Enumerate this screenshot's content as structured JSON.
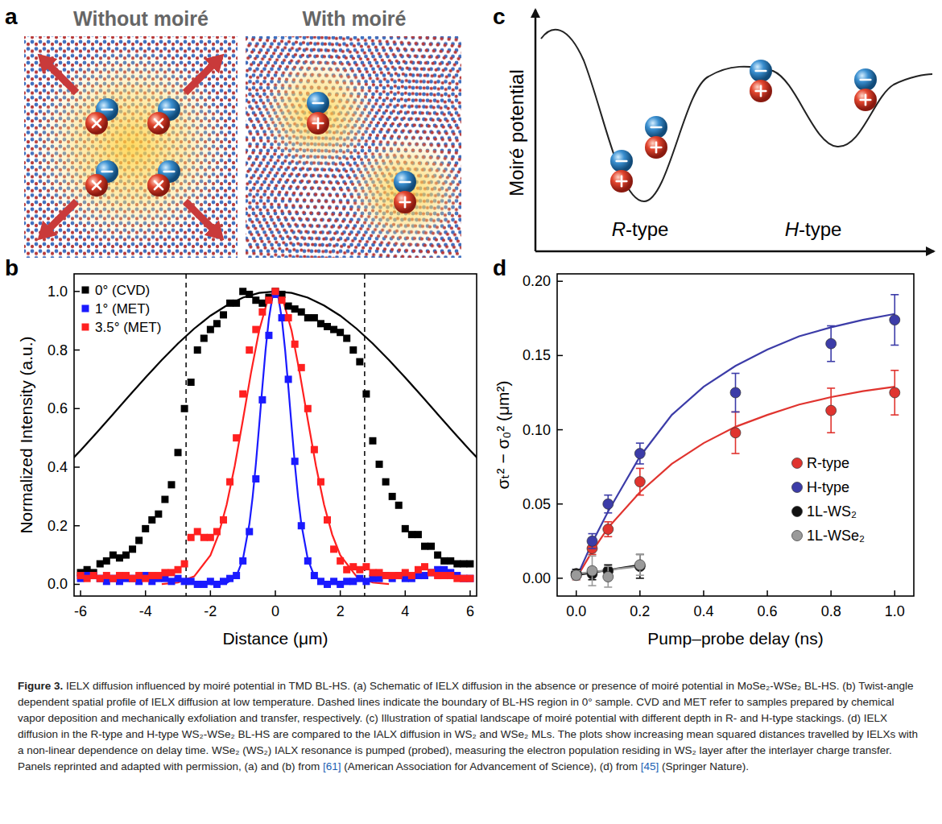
{
  "panels": {
    "a": {
      "letter": "a",
      "titles": [
        "Without moiré",
        "With moiré"
      ]
    },
    "c": {
      "letter": "c",
      "y_label": "Moiré potential",
      "labels": [
        "R-type",
        "H-type"
      ]
    }
  },
  "chart_data": [
    {
      "type": "scatter",
      "panel_label": "b",
      "x_label": "Distance (μm)",
      "y_label": "Normalized Intensity (a.u.)",
      "xlim": [
        -6.2,
        6.2
      ],
      "ylim": [
        -0.04,
        1.06
      ],
      "xticks": [
        -6,
        -4,
        -2,
        0,
        2,
        4,
        6
      ],
      "yticks": [
        {
          "value": 0,
          "label": "0.0"
        },
        0.2,
        0.4,
        0.6,
        0.8,
        {
          "value": 1,
          "label": "1.0"
        }
      ],
      "legend": "upper left",
      "vlines": [
        -2.75,
        2.75
      ],
      "series": [
        {
          "type": "line",
          "color": "#000000",
          "x": [
            -6.5,
            -6,
            -5.5,
            -5,
            -4.5,
            -4,
            -3.5,
            -3,
            -2.5,
            -2,
            -1.5,
            -1,
            -0.5,
            0,
            0.5,
            1,
            1.5,
            2,
            2.5,
            3,
            3.5,
            4,
            4.5,
            5,
            5.5,
            6,
            6.5
          ],
          "values": [
            0.399,
            0.457,
            0.518,
            0.581,
            0.644,
            0.706,
            0.766,
            0.822,
            0.873,
            0.917,
            0.952,
            0.979,
            0.995,
            1,
            0.995,
            0.979,
            0.952,
            0.917,
            0.873,
            0.822,
            0.766,
            0.706,
            0.644,
            0.581,
            0.518,
            0.457,
            0.399
          ]
        },
        {
          "type": "line",
          "color": "#ff2020",
          "x": [
            -3.5,
            -3,
            -2.5,
            -2,
            -1.75,
            -1.5,
            -1.25,
            -1,
            -0.75,
            -0.5,
            -0.25,
            0,
            0.25,
            0.5,
            0.75,
            1,
            1.25,
            1.5,
            1.75,
            2,
            2.5,
            3,
            3.5
          ],
          "values": [
            0.001,
            0.006,
            0.027,
            0.099,
            0.17,
            0.272,
            0.405,
            0.561,
            0.722,
            0.866,
            0.965,
            1,
            0.965,
            0.866,
            0.722,
            0.561,
            0.405,
            0.272,
            0.17,
            0.099,
            0.027,
            0.006,
            0.001
          ]
        },
        {
          "type": "line",
          "color": "#1a1aff",
          "x": [
            -2,
            -1.5,
            -1.2,
            -1,
            -0.8,
            -0.7,
            -0.6,
            -0.5,
            -0.4,
            -0.3,
            -0.2,
            -0.1,
            0,
            0.1,
            0.2,
            0.3,
            0.4,
            0.5,
            0.6,
            0.7,
            0.8,
            1,
            1.2,
            1.5,
            2
          ],
          "values": [
            0,
            0.004,
            0.028,
            0.085,
            0.206,
            0.298,
            0.411,
            0.54,
            0.674,
            0.801,
            0.906,
            0.976,
            1,
            0.976,
            0.906,
            0.801,
            0.674,
            0.54,
            0.411,
            0.298,
            0.206,
            0.085,
            0.028,
            0.004,
            0
          ]
        },
        {
          "name": "0° (CVD)",
          "color": "#000000",
          "marker": "square",
          "x": [
            -6,
            -5.8,
            -5.6,
            -5.4,
            -5.2,
            -5,
            -4.8,
            -4.6,
            -4.4,
            -4.2,
            -4,
            -3.8,
            -3.6,
            -3.4,
            -3.2,
            -3,
            -2.8,
            -2.6,
            -2.4,
            -2.2,
            -2,
            -1.8,
            -1.6,
            -1.4,
            -1.2,
            -1,
            -0.8,
            -0.6,
            -0.4,
            -0.2,
            0,
            0.2,
            0.4,
            0.6,
            0.8,
            1,
            1.2,
            1.4,
            1.6,
            1.8,
            2,
            2.2,
            2.4,
            2.6,
            2.8,
            3,
            3.2,
            3.4,
            3.6,
            3.8,
            4,
            4.2,
            4.4,
            4.6,
            4.8,
            5,
            5.2,
            5.4,
            5.6,
            5.8,
            6
          ],
          "values": [
            0.04,
            0.05,
            0.04,
            0.07,
            0.08,
            0.1,
            0.09,
            0.1,
            0.12,
            0.15,
            0.19,
            0.22,
            0.24,
            0.29,
            0.34,
            0.45,
            0.6,
            0.69,
            0.8,
            0.84,
            0.87,
            0.89,
            0.92,
            0.96,
            0.96,
            1.0,
            0.99,
            0.97,
            0.96,
            0.98,
            1.0,
            0.99,
            0.95,
            0.94,
            0.93,
            0.91,
            0.91,
            0.89,
            0.88,
            0.87,
            0.86,
            0.84,
            0.8,
            0.76,
            0.65,
            0.49,
            0.41,
            0.35,
            0.3,
            0.27,
            0.19,
            0.17,
            0.17,
            0.13,
            0.13,
            0.1,
            0.08,
            0.08,
            0.07,
            0.07,
            0.07
          ]
        },
        {
          "name": "1° (MET)",
          "color": "#1a1aff",
          "marker": "square",
          "x": [
            -6,
            -5.8,
            -5.6,
            -5.4,
            -5.2,
            -5,
            -4.8,
            -4.6,
            -4.4,
            -4.2,
            -4,
            -3.8,
            -3.6,
            -3.4,
            -3.2,
            -3,
            -2.8,
            -2.6,
            -2.4,
            -2.2,
            -2,
            -1.8,
            -1.6,
            -1.4,
            -1.2,
            -1,
            -0.8,
            -0.6,
            -0.4,
            -0.2,
            0,
            0.2,
            0.4,
            0.6,
            0.8,
            1,
            1.2,
            1.4,
            1.6,
            1.8,
            2,
            2.2,
            2.4,
            2.6,
            2.8,
            3,
            3.2,
            3.4,
            3.6,
            3.8,
            4,
            4.2,
            4.4,
            4.6,
            4.8,
            5,
            5.2,
            5.4,
            5.6,
            5.8,
            6
          ],
          "values": [
            0.02,
            0.03,
            0.03,
            0.02,
            0.01,
            0.02,
            0.01,
            0.02,
            0.02,
            0.01,
            0.03,
            0.01,
            0.02,
            0.02,
            0.01,
            0.02,
            0.01,
            0.01,
            0.0,
            0.0,
            0.01,
            0.0,
            0.01,
            0.02,
            0.03,
            0.08,
            0.18,
            0.36,
            0.63,
            0.85,
            0.99,
            0.91,
            0.7,
            0.42,
            0.2,
            0.08,
            0.03,
            0.01,
            0.0,
            0.01,
            0.0,
            0.01,
            0.01,
            0.02,
            0.01,
            0.02,
            0.02,
            0.03,
            0.02,
            0.03,
            0.02,
            0.02,
            0.03,
            0.03,
            0.04,
            0.05,
            0.05,
            0.04,
            0.03,
            0.02,
            0.02
          ]
        },
        {
          "name": "3.5° (MET)",
          "color": "#ff2020",
          "marker": "square",
          "x": [
            -6,
            -5.8,
            -5.6,
            -5.4,
            -5.2,
            -5,
            -4.8,
            -4.6,
            -4.4,
            -4.2,
            -4,
            -3.8,
            -3.6,
            -3.4,
            -3.2,
            -3,
            -2.8,
            -2.6,
            -2.4,
            -2.2,
            -2,
            -1.8,
            -1.6,
            -1.4,
            -1.2,
            -1,
            -0.8,
            -0.6,
            -0.4,
            -0.2,
            0,
            0.2,
            0.4,
            0.6,
            0.8,
            1,
            1.2,
            1.4,
            1.6,
            1.8,
            2,
            2.2,
            2.4,
            2.6,
            2.8,
            3,
            3.2,
            3.4,
            3.6,
            3.8,
            4,
            4.2,
            4.4,
            4.6,
            4.8,
            5,
            5.2,
            5.4,
            5.6,
            5.8,
            6
          ],
          "values": [
            0.03,
            0.02,
            0.03,
            0.02,
            0.03,
            0.02,
            0.03,
            0.03,
            0.02,
            0.03,
            0.02,
            0.03,
            0.03,
            0.04,
            0.04,
            0.05,
            0.07,
            0.16,
            0.18,
            0.16,
            0.16,
            0.18,
            0.22,
            0.35,
            0.5,
            0.65,
            0.8,
            0.87,
            0.93,
            0.97,
            1.0,
            0.97,
            0.91,
            0.82,
            0.74,
            0.6,
            0.46,
            0.35,
            0.22,
            0.12,
            0.08,
            0.05,
            0.06,
            0.05,
            0.06,
            0.04,
            0.04,
            0.03,
            0.03,
            0.03,
            0.04,
            0.03,
            0.05,
            0.06,
            0.04,
            0.03,
            0.03,
            0.03,
            0.02,
            0.02,
            0.02
          ]
        }
      ]
    },
    {
      "type": "scatter",
      "panel_label": "d",
      "x_label": "Pump–probe delay (ns)",
      "y_label": "σₜ² − σ₀² (μm²)",
      "xlim": [
        -0.06,
        1.06
      ],
      "ylim": [
        -0.012,
        0.205
      ],
      "xticks": [
        {
          "value": 0,
          "label": "0.0"
        },
        0.2,
        0.4,
        0.6,
        0.8,
        {
          "value": 1,
          "label": "1.0"
        }
      ],
      "yticks": [
        {
          "value": 0,
          "label": "0.00"
        },
        0.05,
        {
          "value": 0.1,
          "label": "0.10"
        },
        0.15,
        {
          "value": 0.2,
          "label": "0.20"
        }
      ],
      "legend": "lower right",
      "series": [
        {
          "type": "line",
          "color": "#e0342f",
          "x": [
            0,
            0.05,
            0.1,
            0.2,
            0.3,
            0.4,
            0.5,
            0.6,
            0.7,
            0.8,
            0.9,
            1.0
          ],
          "values": [
            0,
            0.018,
            0.034,
            0.058,
            0.077,
            0.091,
            0.102,
            0.11,
            0.117,
            0.122,
            0.126,
            0.129
          ]
        },
        {
          "type": "line",
          "color": "#3c3ca8",
          "x": [
            0,
            0.05,
            0.1,
            0.2,
            0.3,
            0.4,
            0.5,
            0.6,
            0.7,
            0.8,
            0.9,
            1.0
          ],
          "values": [
            0,
            0.024,
            0.045,
            0.082,
            0.11,
            0.129,
            0.143,
            0.154,
            0.163,
            0.169,
            0.174,
            0.178
          ]
        },
        {
          "type": "line",
          "color": "#111111",
          "x": [
            0,
            0.2
          ],
          "values": [
            0.002,
            0.009
          ]
        },
        {
          "type": "line",
          "color": "#9a9a9a",
          "x": [
            0,
            0.2
          ],
          "values": [
            0.003,
            0.008
          ]
        },
        {
          "name": "R-type",
          "color": "#e0342f",
          "marker": "circle",
          "x": [
            0,
            0.05,
            0.1,
            0.2,
            0.5,
            0.8,
            1.0
          ],
          "values": [
            0.002,
            0.02,
            0.033,
            0.065,
            0.098,
            0.113,
            0.125
          ],
          "errors": [
            0.003,
            0.004,
            0.005,
            0.009,
            0.014,
            0.015,
            0.015
          ]
        },
        {
          "name": "H-type",
          "color": "#3c3ca8",
          "marker": "circle",
          "x": [
            0,
            0.05,
            0.1,
            0.2,
            0.5,
            0.8,
            1.0
          ],
          "values": [
            0.003,
            0.025,
            0.05,
            0.084,
            0.125,
            0.158,
            0.174
          ],
          "errors": [
            0.003,
            0.005,
            0.006,
            0.007,
            0.013,
            0.012,
            0.017
          ]
        },
        {
          "name": "1L-WS₂",
          "color": "#111111",
          "marker": "circle",
          "x": [
            0,
            0.05,
            0.1,
            0.2
          ],
          "values": [
            0.003,
            0.003,
            0.005,
            0.008
          ],
          "errors": [
            0.003,
            0.004,
            0.004,
            0.008
          ]
        },
        {
          "name": "1L-WSe₂",
          "color": "#9a9a9a",
          "marker": "circle",
          "x": [
            0,
            0.05,
            0.1,
            0.2
          ],
          "values": [
            0.002,
            0.005,
            0.001,
            0.009
          ],
          "errors": [
            0.003,
            0.01,
            0.007,
            0.007
          ]
        }
      ]
    }
  ],
  "caption": [
    "Figure 3.",
    " IELX diffusion influenced by moiré potential in TMD BL-HS. (a) Schematic of IELX diffusion in the absence or presence of moiré potential in MoSe₂-WSe₂ BL-HS. (b) Twist-angle dependent spatial profile of IELX diffusion at low temperature. Dashed lines indicate the boundary of BL-HS region in 0° sample. CVD and MET refer to samples prepared by chemical vapor deposition and mechanically exfoliation and transfer, respectively. (c) Illustration of spatial landscape of moiré potential with different depth in R- and H-type stackings. (d) IELX diffusion in the R-type and H-type WS₂-WSe₂ BL-HS are compared to the IALX diffusion in WS₂ and WSe₂ MLs. The plots show increasing mean squared distances travelled by IELXs with a non-linear dependence on delay time. WSe₂ (WS₂) IALX resonance is pumped (probed), measuring the electron population residing in WS₂ layer after the interlayer charge transfer. Panels reprinted and adapted with permission, (a) and (b) from ",
    "[61]",
    " (American Association for Advancement of Science), (d) from ",
    "[45]",
    " (Springer Nature)."
  ]
}
